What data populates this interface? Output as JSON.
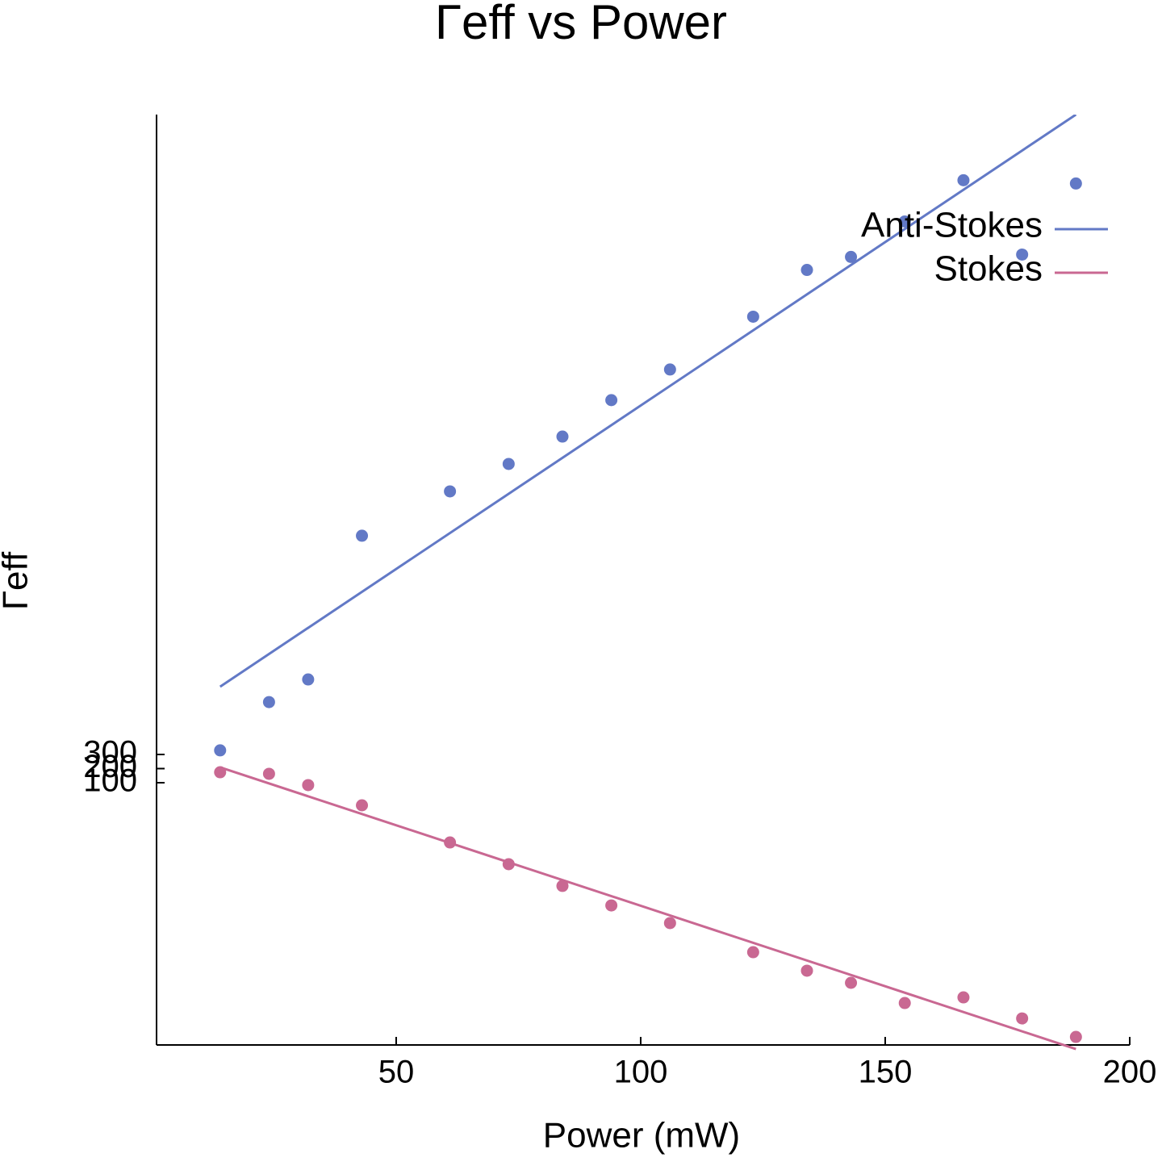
{
  "chart_data": {
    "type": "scatter",
    "title": "Γeff vs Power",
    "x_label": "Power (mW)",
    "y_label": "Γeff",
    "xlim": [
      1,
      200
    ],
    "xticks": [
      50,
      100,
      150,
      200
    ],
    "ylim": [
      -1757,
      4831
    ],
    "yticks": [
      100,
      200,
      300
    ],
    "legend": "upper right",
    "series": [
      {
        "name": "Anti-Stokes",
        "color": "#6279c6",
        "x": [
          14,
          24,
          32,
          43,
          61,
          73,
          84,
          94,
          106,
          123,
          134,
          143,
          154,
          166,
          178,
          189
        ],
        "values": [
          329,
          671,
          831,
          1849,
          2163,
          2357,
          2551,
          2809,
          3026,
          3400,
          3731,
          3823,
          4074,
          4366,
          3840,
          4343
        ],
        "fit": {
          "x": [
            14,
            189
          ],
          "values": [
            780,
            4831
          ]
        }
      },
      {
        "name": "Stokes",
        "color": "#c96892",
        "x": [
          14,
          24,
          32,
          43,
          61,
          73,
          84,
          94,
          106,
          123,
          134,
          143,
          154,
          166,
          178,
          189
        ],
        "values": [
          174,
          163,
          83,
          -60,
          -323,
          -477,
          -631,
          -769,
          -894,
          -1100,
          -1231,
          -1317,
          -1460,
          -1420,
          -1569,
          -1700
        ],
        "fit": {
          "x": [
            14,
            189
          ],
          "values": [
            209,
            -1786
          ]
        }
      }
    ]
  }
}
